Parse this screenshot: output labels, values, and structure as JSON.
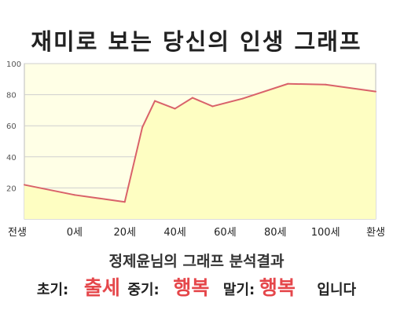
{
  "title": "재미로 보는 당신의 인생 그래프",
  "colors": {
    "fill": "#fefec2",
    "line": "#d9626a",
    "plot_bg": "#ffffe6",
    "grid": "#cfcfcf",
    "accent": "#e5474b"
  },
  "chart_data": {
    "type": "area",
    "x_tick_labels": [
      "전생",
      "0세",
      "20세",
      "40세",
      "60세",
      "80세",
      "100세",
      "환생"
    ],
    "y_ticks": [
      20,
      40,
      60,
      80,
      100
    ],
    "ylim": [
      0,
      100
    ],
    "xlim": [
      -20,
      120
    ],
    "grid": true,
    "series": [
      {
        "x": [
          -20,
          0,
          20,
          27,
          32,
          40,
          47,
          55,
          67,
          85,
          100,
          120
        ],
        "y": [
          22,
          15.5,
          11,
          59,
          76,
          71,
          78,
          72.5,
          77.5,
          87,
          86.5,
          82
        ]
      }
    ]
  },
  "footer": {
    "subtitle": "정제윤님의 그래프 분석결과",
    "early_label": "초기:",
    "early_value": "출세",
    "mid_label": "중기:",
    "mid_value": "행복",
    "late_label": "말기:",
    "late_value": "행복",
    "ending": "입니다"
  }
}
